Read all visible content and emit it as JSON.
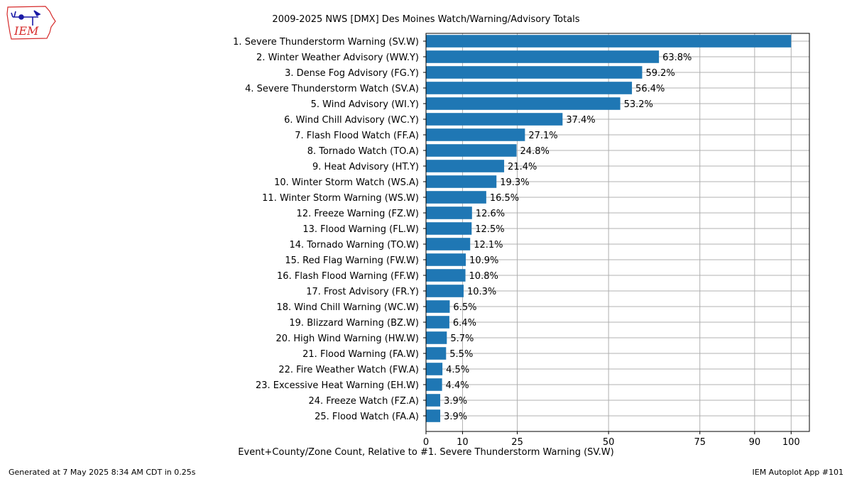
{
  "logo": {
    "text": "IEM"
  },
  "footer": {
    "generated": "Generated at 7 May 2025 8:34 AM CDT in 0.25s",
    "app": "IEM Autoplot App #101"
  },
  "colors": {
    "bar": "#1f77b4",
    "grid": "#b0b0b0",
    "logo_red": "#d62b2b",
    "logo_blue": "#1a1aa6"
  },
  "chart_data": {
    "type": "bar",
    "orientation": "horizontal",
    "title": "2009-2025 NWS [DMX] Des Moines Watch/Warning/Advisory Totals",
    "xlabel": "Event+County/Zone Count, Relative to #1. Severe Thunderstorm Warning (SV.W)",
    "ylabel": "",
    "xlim": [
      0,
      105
    ],
    "xticks": [
      0,
      10,
      25,
      50,
      75,
      90,
      100
    ],
    "grid": true,
    "categories": [
      "1. Severe Thunderstorm Warning (SV.W)",
      "2. Winter Weather Advisory (WW.Y)",
      "3. Dense Fog Advisory (FG.Y)",
      "4. Severe Thunderstorm Watch (SV.A)",
      "5. Wind Advisory (WI.Y)",
      "6. Wind Chill Advisory (WC.Y)",
      "7. Flash Flood Watch (FF.A)",
      "8. Tornado Watch (TO.A)",
      "9. Heat Advisory (HT.Y)",
      "10. Winter Storm Watch (WS.A)",
      "11. Winter Storm Warning (WS.W)",
      "12. Freeze Warning (FZ.W)",
      "13. Flood Warning (FL.W)",
      "14. Tornado Warning (TO.W)",
      "15. Red Flag Warning (FW.W)",
      "16. Flash Flood Warning (FF.W)",
      "17. Frost Advisory (FR.Y)",
      "18. Wind Chill Warning (WC.W)",
      "19. Blizzard Warning (BZ.W)",
      "20. High Wind Warning (HW.W)",
      "21. Flood Warning (FA.W)",
      "22. Fire Weather Watch (FW.A)",
      "23. Excessive Heat Warning (EH.W)",
      "24. Freeze Watch (FZ.A)",
      "25. Flood Watch (FA.A)"
    ],
    "values": [
      100,
      63.8,
      59.2,
      56.4,
      53.2,
      37.4,
      27.1,
      24.8,
      21.4,
      19.3,
      16.5,
      12.6,
      12.5,
      12.1,
      10.9,
      10.8,
      10.3,
      6.5,
      6.4,
      5.7,
      5.5,
      4.5,
      4.4,
      3.9,
      3.9
    ],
    "value_labels": [
      "",
      "63.8%",
      "59.2%",
      "56.4%",
      "53.2%",
      "37.4%",
      "27.1%",
      "24.8%",
      "21.4%",
      "19.3%",
      "16.5%",
      "12.6%",
      "12.5%",
      "12.1%",
      "10.9%",
      "10.8%",
      "10.3%",
      "6.5%",
      "6.4%",
      "5.7%",
      "5.5%",
      "4.5%",
      "4.4%",
      "3.9%",
      "3.9%"
    ]
  }
}
